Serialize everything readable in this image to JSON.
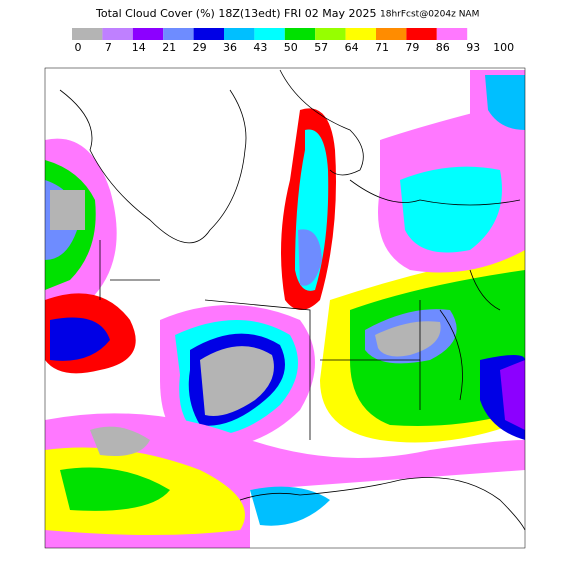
{
  "header": {
    "title": "Total Cloud Cover (%) 18Z(13edt) FRI 02 May 2025",
    "run": "18hrFcst@0204z NAM"
  },
  "legend": {
    "labels": [
      "0",
      "7",
      "14",
      "21",
      "29",
      "36",
      "43",
      "50",
      "57",
      "64",
      "71",
      "79",
      "86",
      "93",
      "100"
    ],
    "colors": [
      "#b4b4b4",
      "#bf80ff",
      "#8c00ff",
      "#6e8cff",
      "#0000e6",
      "#00bfff",
      "#00ffff",
      "#00e100",
      "#96ff00",
      "#ffff00",
      "#ff8c00",
      "#ff0000",
      "#ff78ff"
    ]
  }
}
